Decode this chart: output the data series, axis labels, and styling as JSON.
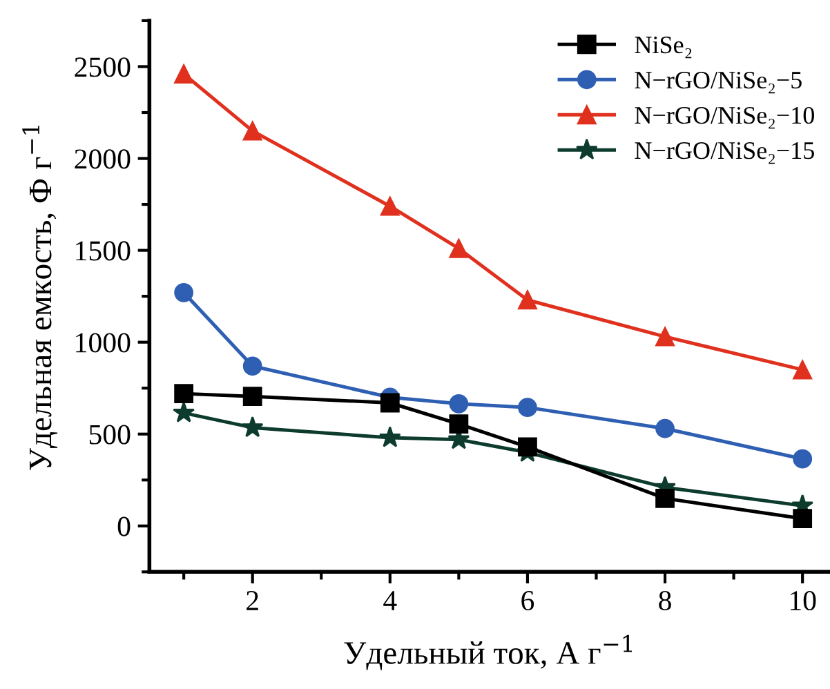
{
  "chart_data": {
    "type": "line",
    "xlabel": "Удельный ток, А г$^{−1}$",
    "ylabel": "Удельная емкость, Ф г$^{−1}$",
    "xlim": [
      0.5,
      10.4
    ],
    "xticks": [
      2,
      4,
      6,
      8,
      10
    ],
    "ylim": [
      -250,
      2750
    ],
    "yticks": [
      0,
      500,
      1000,
      1500,
      2000,
      2500
    ],
    "grid": false,
    "legend": "top right",
    "series": [
      {
        "name": "NiSe₂",
        "color": "#000000",
        "marker": "square",
        "x": [
          1,
          2,
          4,
          5,
          6,
          8,
          10
        ],
        "values": [
          720,
          705,
          670,
          555,
          430,
          150,
          40
        ]
      },
      {
        "name": "N−rGO/NiSe₂−5",
        "color": "#2f5fb3",
        "marker": "circle",
        "x": [
          1,
          2,
          4,
          5,
          6,
          8,
          10
        ],
        "values": [
          1270,
          870,
          700,
          665,
          645,
          530,
          365
        ]
      },
      {
        "name": "N−rGO/NiSe₂−10",
        "color": "#e0301e",
        "marker": "triangle",
        "x": [
          1,
          2,
          4,
          5,
          6,
          8,
          10
        ],
        "values": [
          2460,
          2150,
          1740,
          1510,
          1230,
          1030,
          850
        ]
      },
      {
        "name": "N−rGO/NiSe₂−15",
        "color": "#0d3b2e",
        "marker": "star",
        "x": [
          1,
          2,
          4,
          5,
          6,
          8,
          10
        ],
        "values": [
          615,
          535,
          480,
          470,
          400,
          210,
          110
        ]
      }
    ]
  }
}
